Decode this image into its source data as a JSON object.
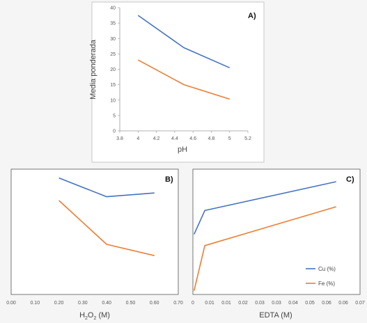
{
  "colors": {
    "cu": "#4472C4",
    "fe": "#ED7D31",
    "axis": "#333333",
    "frame": "#888888"
  },
  "chart_data": [
    {
      "type": "line",
      "panel_label": "A)",
      "xlabel": "pH",
      "ylabel": "Media ponderada",
      "xlim": [
        3.8,
        5.2
      ],
      "ylim": [
        0,
        40
      ],
      "x_ticks": [
        "3.8",
        "4",
        "4.2",
        "4.4",
        "4.6",
        "4.8",
        "5",
        "5.2"
      ],
      "y_ticks": [
        "0",
        "5",
        "10",
        "15",
        "20",
        "25",
        "30",
        "35",
        "40"
      ],
      "series": [
        {
          "key": "cu",
          "x": [
            4,
            4.5,
            5
          ],
          "values": [
            37.5,
            27,
            20.5
          ]
        },
        {
          "key": "fe",
          "x": [
            4,
            4.5,
            5
          ],
          "values": [
            23,
            15,
            10.3
          ]
        }
      ]
    },
    {
      "type": "line",
      "panel_label": "B)",
      "xlabel_main": "H",
      "xlabel_sub1": "2",
      "xlabel_mid": "O",
      "xlabel_sub2": "2",
      "xlabel_unit": " (M)",
      "xlim": [
        0,
        0.7
      ],
      "ylim": [
        0,
        100
      ],
      "x_ticks": [
        "0.00",
        "0.10",
        "0.20",
        "0.30",
        "0.40",
        "0.50",
        "0.60",
        "0.70"
      ],
      "series": [
        {
          "key": "cu",
          "x": [
            0.2,
            0.4,
            0.6
          ],
          "values": [
            93,
            78,
            81
          ]
        },
        {
          "key": "fe",
          "x": [
            0.2,
            0.4,
            0.6
          ],
          "values": [
            75,
            40,
            31
          ]
        }
      ]
    },
    {
      "type": "line",
      "panel_label": "C)",
      "xlabel": "EDTA (M)",
      "xlim": [
        0,
        0.07
      ],
      "ylim": [
        0,
        100
      ],
      "x_ticks": [
        "0",
        "0.01",
        "0.01",
        "0.02",
        "0.03",
        "0.03",
        "0.04",
        "0.05",
        "0.06",
        "0.06",
        "0.07"
      ],
      "series": [
        {
          "key": "cu",
          "name": "Cu (%)",
          "x": [
            0.0005,
            0.005,
            0.06
          ],
          "values": [
            48,
            67,
            90
          ]
        },
        {
          "key": "fe",
          "name": "Fe (%)",
          "x": [
            0.0005,
            0.005,
            0.06
          ],
          "values": [
            3,
            39,
            70
          ]
        }
      ]
    }
  ]
}
